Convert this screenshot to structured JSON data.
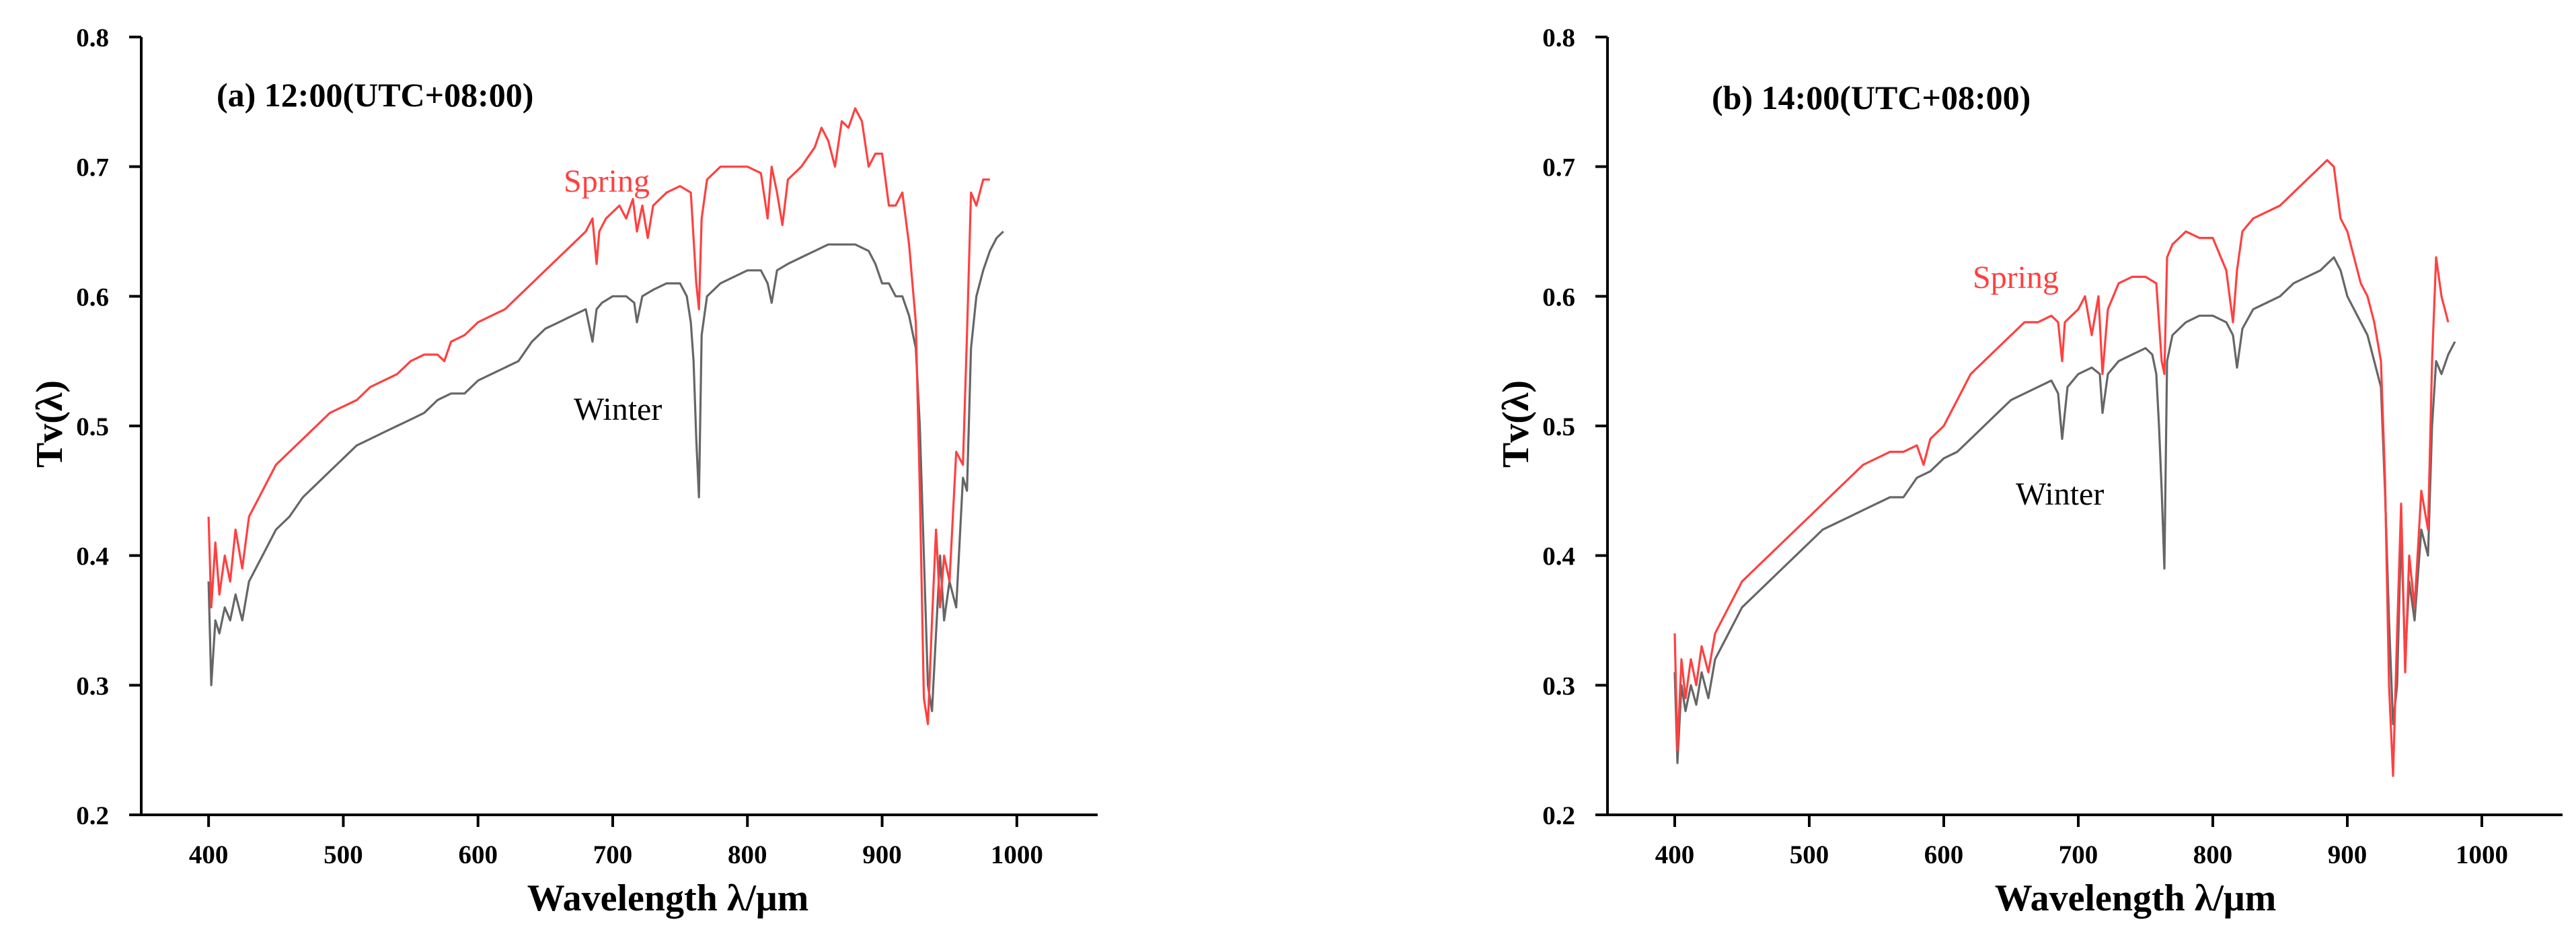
{
  "chart_data": [
    {
      "type": "line",
      "title": "(a) 12:00(UTC+08:00)",
      "xlabel": "Wavelength λ/μm",
      "ylabel": "Tv(λ)",
      "xlim": [
        350,
        1060
      ],
      "ylim": [
        0.2,
        0.8
      ],
      "xticks": [
        "400",
        "500",
        "600",
        "700",
        "800",
        "900",
        "1000"
      ],
      "yticks": [
        "0.2",
        "0.3",
        "0.4",
        "0.5",
        "0.6",
        "0.7",
        "0.8"
      ],
      "grid": false,
      "series": [
        {
          "name": "Spring",
          "color": "#ff4040",
          "x": [
            400,
            402,
            405,
            408,
            412,
            416,
            420,
            425,
            430,
            440,
            450,
            460,
            470,
            480,
            490,
            500,
            510,
            520,
            530,
            540,
            550,
            560,
            570,
            575,
            580,
            590,
            600,
            610,
            620,
            630,
            640,
            650,
            660,
            670,
            680,
            685,
            688,
            690,
            695,
            700,
            705,
            710,
            715,
            718,
            722,
            726,
            730,
            740,
            750,
            758,
            762,
            764,
            766,
            770,
            780,
            790,
            800,
            810,
            815,
            818,
            822,
            826,
            830,
            840,
            850,
            855,
            860,
            865,
            870,
            875,
            880,
            885,
            890,
            895,
            900,
            905,
            910,
            915,
            920,
            925,
            928,
            931,
            934,
            937,
            940,
            943,
            946,
            950,
            955,
            960,
            963,
            966,
            970,
            975,
            980
          ],
          "y": [
            0.43,
            0.36,
            0.41,
            0.37,
            0.4,
            0.38,
            0.42,
            0.39,
            0.43,
            0.45,
            0.47,
            0.48,
            0.49,
            0.5,
            0.51,
            0.515,
            0.52,
            0.53,
            0.535,
            0.54,
            0.55,
            0.555,
            0.555,
            0.55,
            0.565,
            0.57,
            0.58,
            0.585,
            0.59,
            0.6,
            0.61,
            0.62,
            0.63,
            0.64,
            0.65,
            0.66,
            0.625,
            0.65,
            0.66,
            0.665,
            0.67,
            0.66,
            0.675,
            0.65,
            0.67,
            0.645,
            0.67,
            0.68,
            0.685,
            0.68,
            0.61,
            0.59,
            0.66,
            0.69,
            0.7,
            0.7,
            0.7,
            0.695,
            0.66,
            0.7,
            0.68,
            0.655,
            0.69,
            0.7,
            0.715,
            0.73,
            0.72,
            0.7,
            0.735,
            0.73,
            0.745,
            0.735,
            0.7,
            0.71,
            0.71,
            0.67,
            0.67,
            0.68,
            0.64,
            0.58,
            0.45,
            0.29,
            0.27,
            0.35,
            0.42,
            0.36,
            0.4,
            0.38,
            0.48,
            0.47,
            0.57,
            0.68,
            0.67,
            0.69,
            0.69
          ]
        },
        {
          "name": "Winter",
          "color": "#666666",
          "x": [
            400,
            402,
            405,
            408,
            412,
            416,
            420,
            425,
            430,
            440,
            450,
            460,
            470,
            480,
            490,
            500,
            510,
            520,
            530,
            540,
            550,
            560,
            570,
            580,
            590,
            600,
            610,
            620,
            630,
            640,
            650,
            660,
            670,
            680,
            685,
            688,
            692,
            700,
            710,
            716,
            718,
            722,
            730,
            740,
            750,
            755,
            758,
            760,
            762,
            764,
            766,
            770,
            780,
            790,
            800,
            810,
            815,
            818,
            822,
            830,
            840,
            850,
            860,
            870,
            880,
            890,
            895,
            900,
            905,
            910,
            915,
            920,
            925,
            928,
            931,
            934,
            937,
            940,
            943,
            946,
            950,
            955,
            960,
            963,
            966,
            970,
            975,
            980,
            985,
            990
          ],
          "y": [
            0.38,
            0.3,
            0.35,
            0.34,
            0.36,
            0.35,
            0.37,
            0.35,
            0.38,
            0.4,
            0.42,
            0.43,
            0.445,
            0.455,
            0.465,
            0.475,
            0.485,
            0.49,
            0.495,
            0.5,
            0.505,
            0.51,
            0.52,
            0.525,
            0.525,
            0.535,
            0.54,
            0.545,
            0.55,
            0.565,
            0.575,
            0.58,
            0.585,
            0.59,
            0.565,
            0.59,
            0.595,
            0.6,
            0.6,
            0.595,
            0.58,
            0.6,
            0.605,
            0.61,
            0.61,
            0.6,
            0.58,
            0.55,
            0.49,
            0.445,
            0.57,
            0.6,
            0.61,
            0.615,
            0.62,
            0.62,
            0.61,
            0.595,
            0.62,
            0.625,
            0.63,
            0.635,
            0.64,
            0.64,
            0.64,
            0.635,
            0.625,
            0.61,
            0.61,
            0.6,
            0.6,
            0.585,
            0.56,
            0.5,
            0.4,
            0.3,
            0.28,
            0.34,
            0.4,
            0.35,
            0.38,
            0.36,
            0.46,
            0.45,
            0.56,
            0.6,
            0.62,
            0.635,
            0.645,
            0.65
          ]
        }
      ],
      "annotations": [
        {
          "text": "Spring",
          "color": "#ff4040"
        },
        {
          "text": "Winter",
          "color": "#000000"
        }
      ]
    },
    {
      "type": "line",
      "title": "(b) 14:00(UTC+08:00)",
      "xlabel": "Wavelength λ/μm",
      "ylabel": "Tv(λ)",
      "xlim": [
        350,
        1060
      ],
      "ylim": [
        0.2,
        0.8
      ],
      "xticks": [
        "400",
        "500",
        "600",
        "700",
        "800",
        "900",
        "1000"
      ],
      "yticks": [
        "0.2",
        "0.3",
        "0.4",
        "0.5",
        "0.6",
        "0.7",
        "0.8"
      ],
      "grid": false,
      "series": [
        {
          "name": "Spring",
          "color": "#ff4040",
          "x": [
            400,
            402,
            405,
            408,
            412,
            416,
            420,
            425,
            430,
            440,
            450,
            460,
            470,
            480,
            490,
            500,
            510,
            520,
            530,
            540,
            550,
            560,
            570,
            580,
            585,
            590,
            600,
            610,
            620,
            630,
            640,
            650,
            660,
            670,
            680,
            685,
            688,
            690,
            695,
            700,
            705,
            710,
            715,
            718,
            722,
            730,
            740,
            750,
            758,
            762,
            764,
            766,
            770,
            780,
            790,
            800,
            810,
            815,
            818,
            822,
            830,
            840,
            850,
            860,
            870,
            875,
            880,
            885,
            890,
            895,
            900,
            905,
            910,
            915,
            920,
            925,
            928,
            931,
            934,
            937,
            940,
            943,
            946,
            950,
            955,
            960,
            963,
            966,
            970,
            975
          ],
          "y": [
            0.34,
            0.25,
            0.32,
            0.29,
            0.32,
            0.3,
            0.33,
            0.31,
            0.34,
            0.36,
            0.38,
            0.39,
            0.4,
            0.41,
            0.42,
            0.43,
            0.44,
            0.45,
            0.46,
            0.47,
            0.475,
            0.48,
            0.48,
            0.485,
            0.47,
            0.49,
            0.5,
            0.52,
            0.54,
            0.55,
            0.56,
            0.57,
            0.58,
            0.58,
            0.585,
            0.58,
            0.55,
            0.58,
            0.585,
            0.59,
            0.6,
            0.57,
            0.6,
            0.54,
            0.59,
            0.61,
            0.615,
            0.615,
            0.61,
            0.55,
            0.54,
            0.63,
            0.64,
            0.65,
            0.645,
            0.645,
            0.62,
            0.58,
            0.62,
            0.65,
            0.66,
            0.665,
            0.67,
            0.68,
            0.69,
            0.695,
            0.7,
            0.705,
            0.7,
            0.66,
            0.65,
            0.63,
            0.61,
            0.6,
            0.58,
            0.55,
            0.46,
            0.3,
            0.23,
            0.34,
            0.44,
            0.31,
            0.4,
            0.36,
            0.45,
            0.42,
            0.55,
            0.63,
            0.6,
            0.58
          ]
        },
        {
          "name": "Winter",
          "color": "#666666",
          "x": [
            400,
            402,
            405,
            408,
            412,
            416,
            420,
            425,
            430,
            440,
            450,
            460,
            470,
            480,
            490,
            500,
            510,
            520,
            530,
            540,
            550,
            560,
            570,
            580,
            590,
            600,
            610,
            620,
            630,
            640,
            650,
            660,
            670,
            680,
            685,
            688,
            692,
            700,
            710,
            716,
            718,
            722,
            730,
            740,
            750,
            755,
            758,
            760,
            762,
            764,
            766,
            770,
            780,
            790,
            800,
            810,
            815,
            818,
            822,
            830,
            840,
            850,
            860,
            870,
            880,
            890,
            895,
            900,
            905,
            910,
            915,
            920,
            925,
            928,
            931,
            934,
            937,
            940,
            943,
            946,
            950,
            955,
            960,
            963,
            966,
            970,
            975,
            980
          ],
          "y": [
            0.31,
            0.24,
            0.3,
            0.28,
            0.3,
            0.285,
            0.31,
            0.29,
            0.32,
            0.34,
            0.36,
            0.37,
            0.38,
            0.39,
            0.4,
            0.41,
            0.42,
            0.425,
            0.43,
            0.435,
            0.44,
            0.445,
            0.445,
            0.46,
            0.465,
            0.475,
            0.48,
            0.49,
            0.5,
            0.51,
            0.52,
            0.525,
            0.53,
            0.535,
            0.525,
            0.49,
            0.53,
            0.54,
            0.545,
            0.54,
            0.51,
            0.54,
            0.55,
            0.555,
            0.56,
            0.555,
            0.54,
            0.5,
            0.45,
            0.39,
            0.55,
            0.57,
            0.58,
            0.585,
            0.585,
            0.58,
            0.57,
            0.545,
            0.575,
            0.59,
            0.595,
            0.6,
            0.61,
            0.615,
            0.62,
            0.63,
            0.62,
            0.6,
            0.59,
            0.58,
            0.57,
            0.55,
            0.53,
            0.45,
            0.35,
            0.27,
            0.3,
            0.42,
            0.32,
            0.38,
            0.35,
            0.42,
            0.4,
            0.5,
            0.55,
            0.54,
            0.555,
            0.565
          ]
        }
      ],
      "annotations": [
        {
          "text": "Spring",
          "color": "#ff4040"
        },
        {
          "text": "Winter",
          "color": "#000000"
        }
      ]
    }
  ]
}
